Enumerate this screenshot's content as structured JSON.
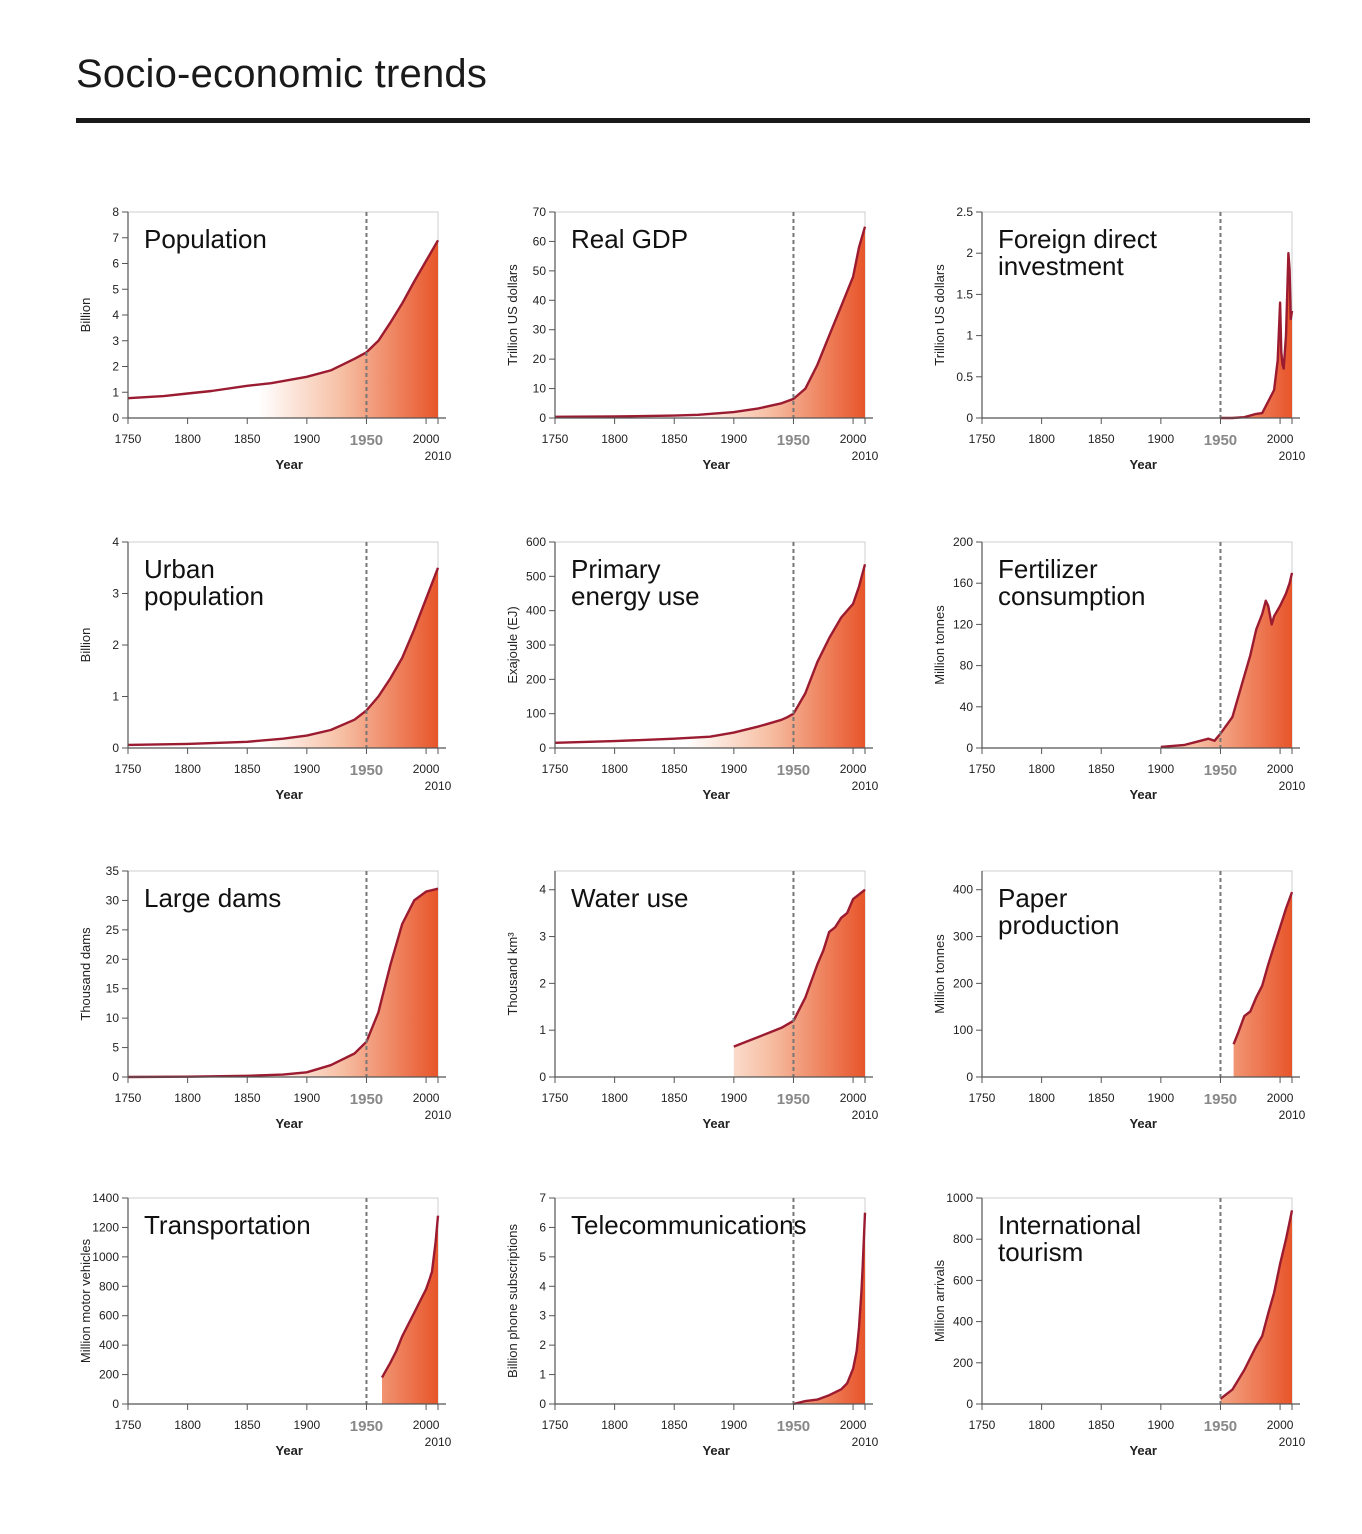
{
  "page": {
    "title": "Socio-economic trends"
  },
  "colors": {
    "line": "#9b1b30",
    "fill_dark": "#e8552a",
    "dashed": "#777777",
    "axis": "#555555"
  },
  "chart_data": [
    {
      "type": "area",
      "title": [
        "Population"
      ],
      "ylabel": "Billion",
      "xlabel": "Year",
      "xlim": [
        1750,
        2010
      ],
      "ylim": [
        0,
        8
      ],
      "yticks": [
        "0",
        "1",
        "2",
        "3",
        "4",
        "5",
        "6",
        "7",
        "8"
      ],
      "ytick_values": [
        0,
        1,
        2,
        3,
        4,
        5,
        6,
        7,
        8
      ],
      "xticks": [
        "1750",
        "1800",
        "1850",
        "1900",
        "1950",
        "2000"
      ],
      "xtick_values": [
        1750,
        1800,
        1850,
        1900,
        1950,
        2000
      ],
      "highlight_year": "1950",
      "end_year": "2010",
      "x": [
        1750,
        1780,
        1800,
        1820,
        1850,
        1870,
        1900,
        1920,
        1940,
        1950,
        1960,
        1970,
        1980,
        1990,
        2000,
        2010
      ],
      "y": [
        0.77,
        0.85,
        0.95,
        1.05,
        1.25,
        1.35,
        1.6,
        1.85,
        2.3,
        2.55,
        3.0,
        3.7,
        4.45,
        5.3,
        6.1,
        6.9
      ]
    },
    {
      "type": "area",
      "title": [
        "Real GDP"
      ],
      "ylabel": "Trillion US dollars",
      "xlabel": "Year",
      "xlim": [
        1750,
        2010
      ],
      "ylim": [
        0,
        70
      ],
      "yticks": [
        "0",
        "10",
        "20",
        "30",
        "40",
        "50",
        "60",
        "70"
      ],
      "ytick_values": [
        0,
        10,
        20,
        30,
        40,
        50,
        60,
        70
      ],
      "xticks": [
        "1750",
        "1800",
        "1850",
        "1900",
        "1950",
        "2000"
      ],
      "xtick_values": [
        1750,
        1800,
        1850,
        1900,
        1950,
        2000
      ],
      "highlight_year": "1950",
      "end_year": "2010",
      "x": [
        1750,
        1800,
        1850,
        1870,
        1900,
        1920,
        1940,
        1950,
        1960,
        1970,
        1980,
        1990,
        2000,
        2005,
        2010
      ],
      "y": [
        0.4,
        0.5,
        0.8,
        1.1,
        2.0,
        3.2,
        5.0,
        6.5,
        10,
        18,
        28,
        38,
        48,
        58,
        65
      ]
    },
    {
      "type": "area",
      "title": [
        "Foreign direct",
        "investment"
      ],
      "ylabel": "Trillion US dollars",
      "xlabel": "Year",
      "xlim": [
        1750,
        2010
      ],
      "ylim": [
        0,
        2.5
      ],
      "yticks": [
        "0",
        "0.5",
        "1",
        "1.5",
        "2",
        "2.5"
      ],
      "ytick_values": [
        0,
        0.5,
        1,
        1.5,
        2,
        2.5
      ],
      "xticks": [
        "1750",
        "1800",
        "1850",
        "1900",
        "1950",
        "2000"
      ],
      "xtick_values": [
        1750,
        1800,
        1850,
        1900,
        1950,
        2000
      ],
      "highlight_year": "1950",
      "end_year": "2010",
      "x": [
        1950,
        1960,
        1970,
        1980,
        1985,
        1990,
        1995,
        1998,
        2000,
        2001,
        2002,
        2003,
        2005,
        2007,
        2008,
        2009,
        2010
      ],
      "y": [
        0.0,
        0.0,
        0.01,
        0.05,
        0.06,
        0.2,
        0.34,
        0.7,
        1.4,
        0.8,
        0.65,
        0.6,
        1.0,
        2.0,
        1.8,
        1.2,
        1.3
      ]
    },
    {
      "type": "area",
      "title": [
        "Urban",
        "population"
      ],
      "ylabel": "Billion",
      "xlabel": "Year",
      "xlim": [
        1750,
        2010
      ],
      "ylim": [
        0,
        4
      ],
      "yticks": [
        "0",
        "1",
        "2",
        "3",
        "4"
      ],
      "ytick_values": [
        0,
        1,
        2,
        3,
        4
      ],
      "xticks": [
        "1750",
        "1800",
        "1850",
        "1900",
        "1950",
        "2000"
      ],
      "xtick_values": [
        1750,
        1800,
        1850,
        1900,
        1950,
        2000
      ],
      "highlight_year": "1950",
      "end_year": "2010",
      "x": [
        1750,
        1800,
        1850,
        1880,
        1900,
        1920,
        1940,
        1950,
        1960,
        1970,
        1980,
        1990,
        2000,
        2010
      ],
      "y": [
        0.06,
        0.08,
        0.12,
        0.18,
        0.24,
        0.35,
        0.55,
        0.73,
        1.0,
        1.35,
        1.75,
        2.3,
        2.9,
        3.5
      ]
    },
    {
      "type": "area",
      "title": [
        "Primary",
        "energy use"
      ],
      "ylabel": "Exajoule (EJ)",
      "xlabel": "Year",
      "xlim": [
        1750,
        2010
      ],
      "ylim": [
        0,
        600
      ],
      "yticks": [
        "0",
        "100",
        "200",
        "300",
        "400",
        "500",
        "600"
      ],
      "ytick_values": [
        0,
        100,
        200,
        300,
        400,
        500,
        600
      ],
      "xticks": [
        "1750",
        "1800",
        "1850",
        "1900",
        "1950",
        "2000"
      ],
      "xtick_values": [
        1750,
        1800,
        1850,
        1900,
        1950,
        2000
      ],
      "highlight_year": "1950",
      "end_year": "2010",
      "x": [
        1750,
        1800,
        1850,
        1880,
        1900,
        1920,
        1930,
        1940,
        1945,
        1950,
        1960,
        1970,
        1980,
        1990,
        2000,
        2005,
        2010
      ],
      "y": [
        15,
        20,
        27,
        33,
        45,
        62,
        72,
        82,
        90,
        100,
        160,
        250,
        320,
        380,
        420,
        470,
        535
      ]
    },
    {
      "type": "area",
      "title": [
        "Fertilizer",
        "consumption"
      ],
      "ylabel": "Million tonnes",
      "xlabel": "Year",
      "xlim": [
        1750,
        2010
      ],
      "ylim": [
        0,
        200
      ],
      "yticks": [
        "0",
        "40",
        "80",
        "120",
        "160",
        "200"
      ],
      "ytick_values": [
        0,
        40,
        80,
        120,
        160,
        200
      ],
      "xticks": [
        "1750",
        "1800",
        "1850",
        "1900",
        "1950",
        "2000"
      ],
      "xtick_values": [
        1750,
        1800,
        1850,
        1900,
        1950,
        2000
      ],
      "highlight_year": "1950",
      "end_year": "2010",
      "x": [
        1900,
        1910,
        1920,
        1930,
        1940,
        1945,
        1950,
        1960,
        1970,
        1975,
        1980,
        1985,
        1988,
        1990,
        1993,
        1995,
        2000,
        2005,
        2008,
        2010
      ],
      "y": [
        1,
        2,
        3,
        6,
        9,
        7,
        14,
        30,
        70,
        90,
        115,
        130,
        143,
        138,
        120,
        128,
        138,
        150,
        160,
        170
      ]
    },
    {
      "type": "area",
      "title": [
        "Large dams"
      ],
      "ylabel": "Thousand dams",
      "xlabel": "Year",
      "xlim": [
        1750,
        2010
      ],
      "ylim": [
        0,
        35
      ],
      "yticks": [
        "0",
        "5",
        "10",
        "15",
        "20",
        "25",
        "30",
        "35"
      ],
      "ytick_values": [
        0,
        5,
        10,
        15,
        20,
        25,
        30,
        35
      ],
      "xticks": [
        "1750",
        "1800",
        "1850",
        "1900",
        "1950",
        "2000"
      ],
      "xtick_values": [
        1750,
        1800,
        1850,
        1900,
        1950,
        2000
      ],
      "highlight_year": "1950",
      "end_year": "2010",
      "x": [
        1750,
        1800,
        1850,
        1880,
        1900,
        1920,
        1940,
        1950,
        1960,
        1970,
        1980,
        1990,
        2000,
        2010
      ],
      "y": [
        0,
        0.05,
        0.2,
        0.4,
        0.8,
        2.0,
        4.0,
        6.0,
        11,
        19,
        26,
        30,
        31.5,
        32
      ]
    },
    {
      "type": "area",
      "title": [
        "Water use"
      ],
      "ylabel": "Thousand km³",
      "xlabel": "Year",
      "xlim": [
        1750,
        2010
      ],
      "ylim": [
        0,
        4.4
      ],
      "yticks": [
        "0",
        "1",
        "2",
        "3",
        "4"
      ],
      "ytick_values": [
        0,
        1,
        2,
        3,
        4
      ],
      "xticks": [
        "1750",
        "1800",
        "1850",
        "1900",
        "1950",
        "2000"
      ],
      "xtick_values": [
        1750,
        1800,
        1850,
        1900,
        1950,
        2000
      ],
      "highlight_year": "1950",
      "end_year": "2010",
      "x": [
        1900,
        1910,
        1920,
        1930,
        1940,
        1950,
        1960,
        1970,
        1975,
        1980,
        1985,
        1990,
        1995,
        2000,
        2005,
        2010
      ],
      "y": [
        0.65,
        0.75,
        0.85,
        0.95,
        1.05,
        1.2,
        1.7,
        2.4,
        2.7,
        3.1,
        3.2,
        3.4,
        3.5,
        3.8,
        3.9,
        4.0
      ]
    },
    {
      "type": "area",
      "title": [
        "Paper",
        "production"
      ],
      "ylabel": "Million tonnes",
      "xlabel": "Year",
      "xlim": [
        1750,
        2010
      ],
      "ylim": [
        0,
        440
      ],
      "yticks": [
        "0",
        "100",
        "200",
        "300",
        "400"
      ],
      "ytick_values": [
        0,
        100,
        200,
        300,
        400
      ],
      "xticks": [
        "1750",
        "1800",
        "1850",
        "1900",
        "1950",
        "2000"
      ],
      "xtick_values": [
        1750,
        1800,
        1850,
        1900,
        1950,
        2000
      ],
      "highlight_year": "1950",
      "end_year": "2010",
      "x": [
        1961,
        1965,
        1970,
        1975,
        1980,
        1985,
        1990,
        1995,
        2000,
        2005,
        2010
      ],
      "y": [
        70,
        95,
        130,
        140,
        170,
        195,
        240,
        280,
        320,
        360,
        395
      ]
    },
    {
      "type": "area",
      "title": [
        "Transportation"
      ],
      "ylabel": "Million motor vehicles",
      "xlabel": "Year",
      "xlim": [
        1750,
        2010
      ],
      "ylim": [
        0,
        1400
      ],
      "yticks": [
        "0",
        "200",
        "400",
        "600",
        "800",
        "1000",
        "1200",
        "1400"
      ],
      "ytick_values": [
        0,
        200,
        400,
        600,
        800,
        1000,
        1200,
        1400
      ],
      "xticks": [
        "1750",
        "1800",
        "1850",
        "1900",
        "1950",
        "2000"
      ],
      "xtick_values": [
        1750,
        1800,
        1850,
        1900,
        1950,
        2000
      ],
      "highlight_year": "1950",
      "end_year": "2010",
      "x": [
        1963,
        1970,
        1975,
        1980,
        1985,
        1990,
        1995,
        2000,
        2003,
        2005,
        2008,
        2010
      ],
      "y": [
        180,
        280,
        360,
        460,
        540,
        620,
        700,
        780,
        850,
        900,
        1100,
        1280
      ]
    },
    {
      "type": "area",
      "title": [
        "Telecommunications"
      ],
      "ylabel": "Billion phone subscriptions",
      "xlabel": "Year",
      "xlim": [
        1750,
        2010
      ],
      "ylim": [
        0,
        7
      ],
      "yticks": [
        "0",
        "1",
        "2",
        "3",
        "4",
        "5",
        "6",
        "7"
      ],
      "ytick_values": [
        0,
        1,
        2,
        3,
        4,
        5,
        6,
        7
      ],
      "xticks": [
        "1750",
        "1800",
        "1850",
        "1900",
        "1950",
        "2000"
      ],
      "xtick_values": [
        1750,
        1800,
        1850,
        1900,
        1950,
        2000
      ],
      "highlight_year": "1950",
      "end_year": "2010",
      "x": [
        1950,
        1960,
        1970,
        1980,
        1990,
        1995,
        2000,
        2003,
        2005,
        2007,
        2008,
        2010
      ],
      "y": [
        0.0,
        0.1,
        0.15,
        0.3,
        0.5,
        0.7,
        1.2,
        1.8,
        2.6,
        3.8,
        4.6,
        6.5
      ]
    },
    {
      "type": "area",
      "title": [
        "International",
        "tourism"
      ],
      "ylabel": "Million arrivals",
      "xlabel": "Year",
      "xlim": [
        1750,
        2010
      ],
      "ylim": [
        0,
        1000
      ],
      "yticks": [
        "0",
        "200",
        "400",
        "600",
        "800",
        "1000"
      ],
      "ytick_values": [
        0,
        200,
        400,
        600,
        800,
        1000
      ],
      "xticks": [
        "1750",
        "1800",
        "1850",
        "1900",
        "1950",
        "2000"
      ],
      "xtick_values": [
        1750,
        1800,
        1850,
        1900,
        1950,
        2000
      ],
      "highlight_year": "1950",
      "end_year": "2010",
      "x": [
        1950,
        1960,
        1970,
        1980,
        1985,
        1990,
        1995,
        2000,
        2005,
        2010
      ],
      "y": [
        25,
        70,
        165,
        280,
        330,
        440,
        540,
        680,
        800,
        940
      ]
    }
  ]
}
